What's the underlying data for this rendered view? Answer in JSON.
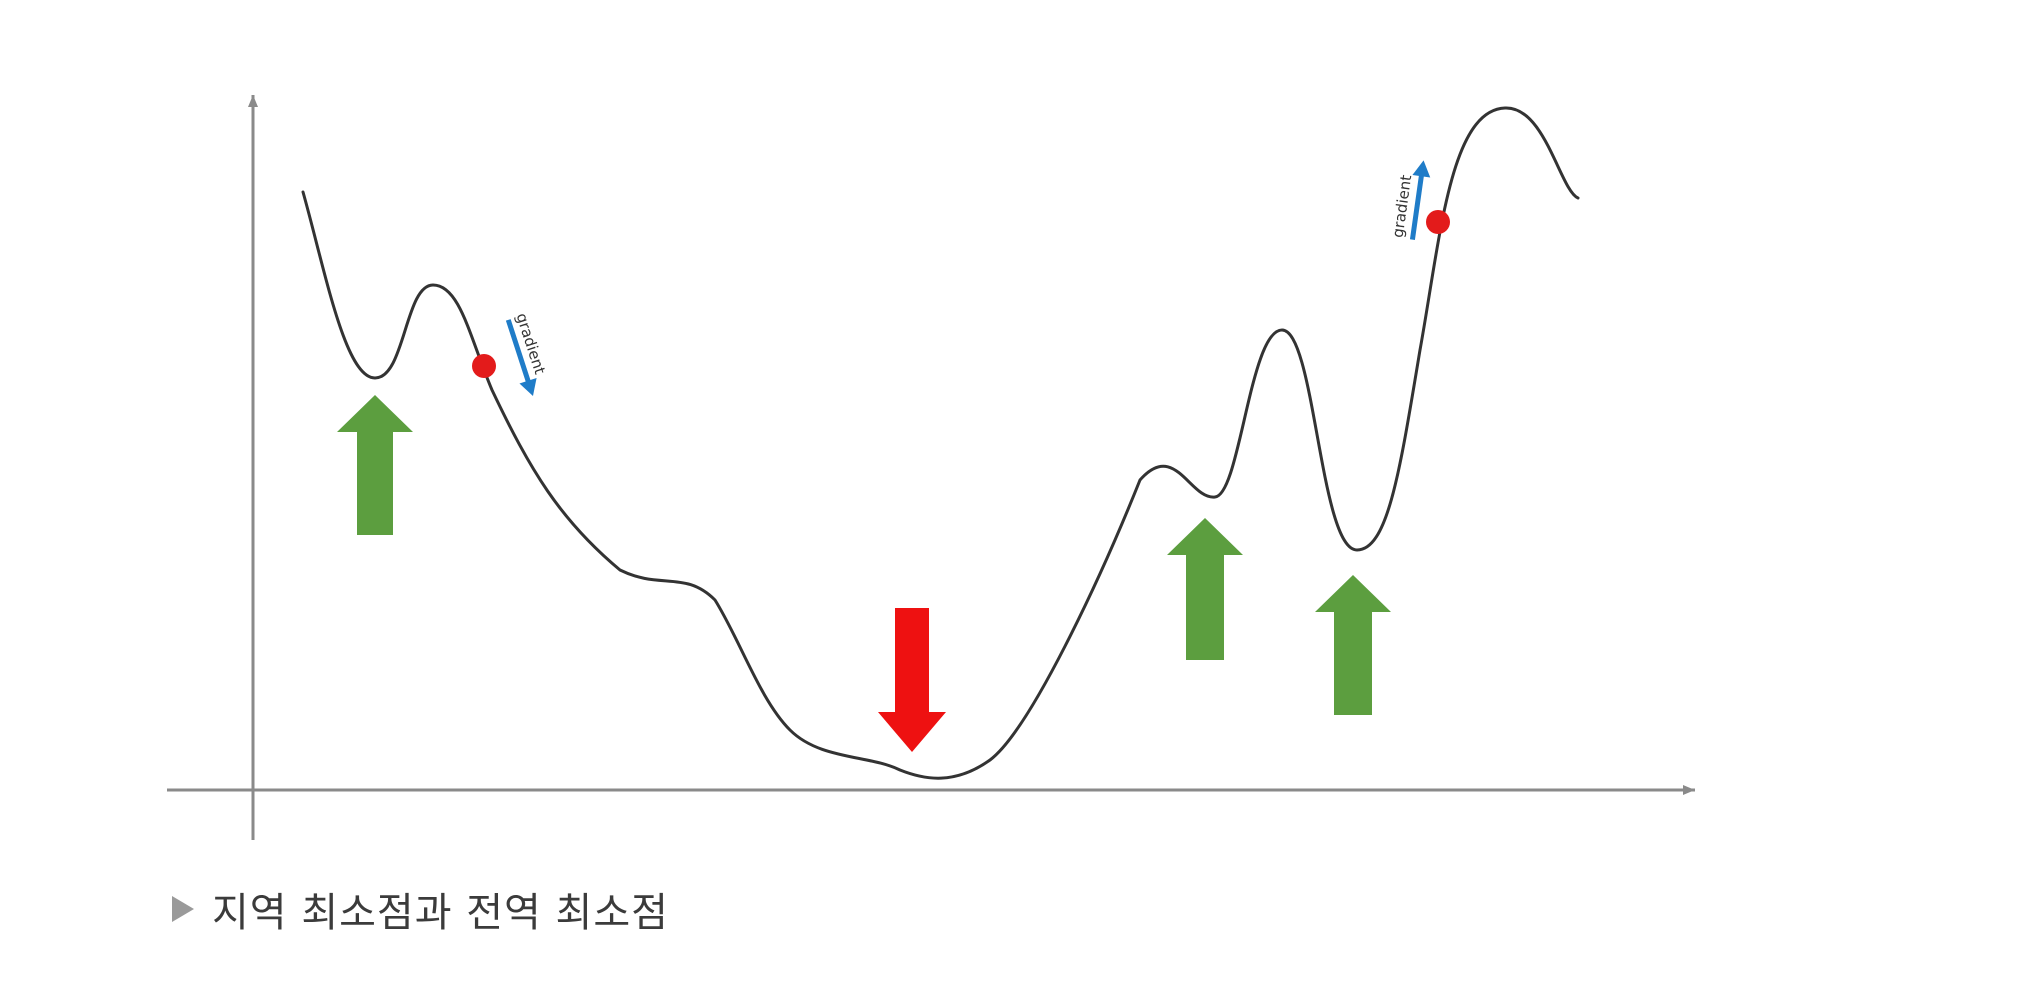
{
  "caption": {
    "marker_icon": "triangle-right-icon",
    "text": "지역 최소점과 전역 최소점"
  },
  "labels": {
    "gradient_left": "gradient",
    "gradient_right": "gradient"
  },
  "colors": {
    "curve": "#333333",
    "axis": "#8a8a8a",
    "local_min_arrow": "#5c9e3f",
    "global_min_arrow": "#ee1111",
    "ball": "#e31b1b",
    "gradient_arrow": "#1f7cc8",
    "caption_text": "#3b3b3b",
    "caption_marker": "#9a9a9a"
  },
  "markers": {
    "local_minima_count": 3,
    "global_minimum_count": 1
  }
}
